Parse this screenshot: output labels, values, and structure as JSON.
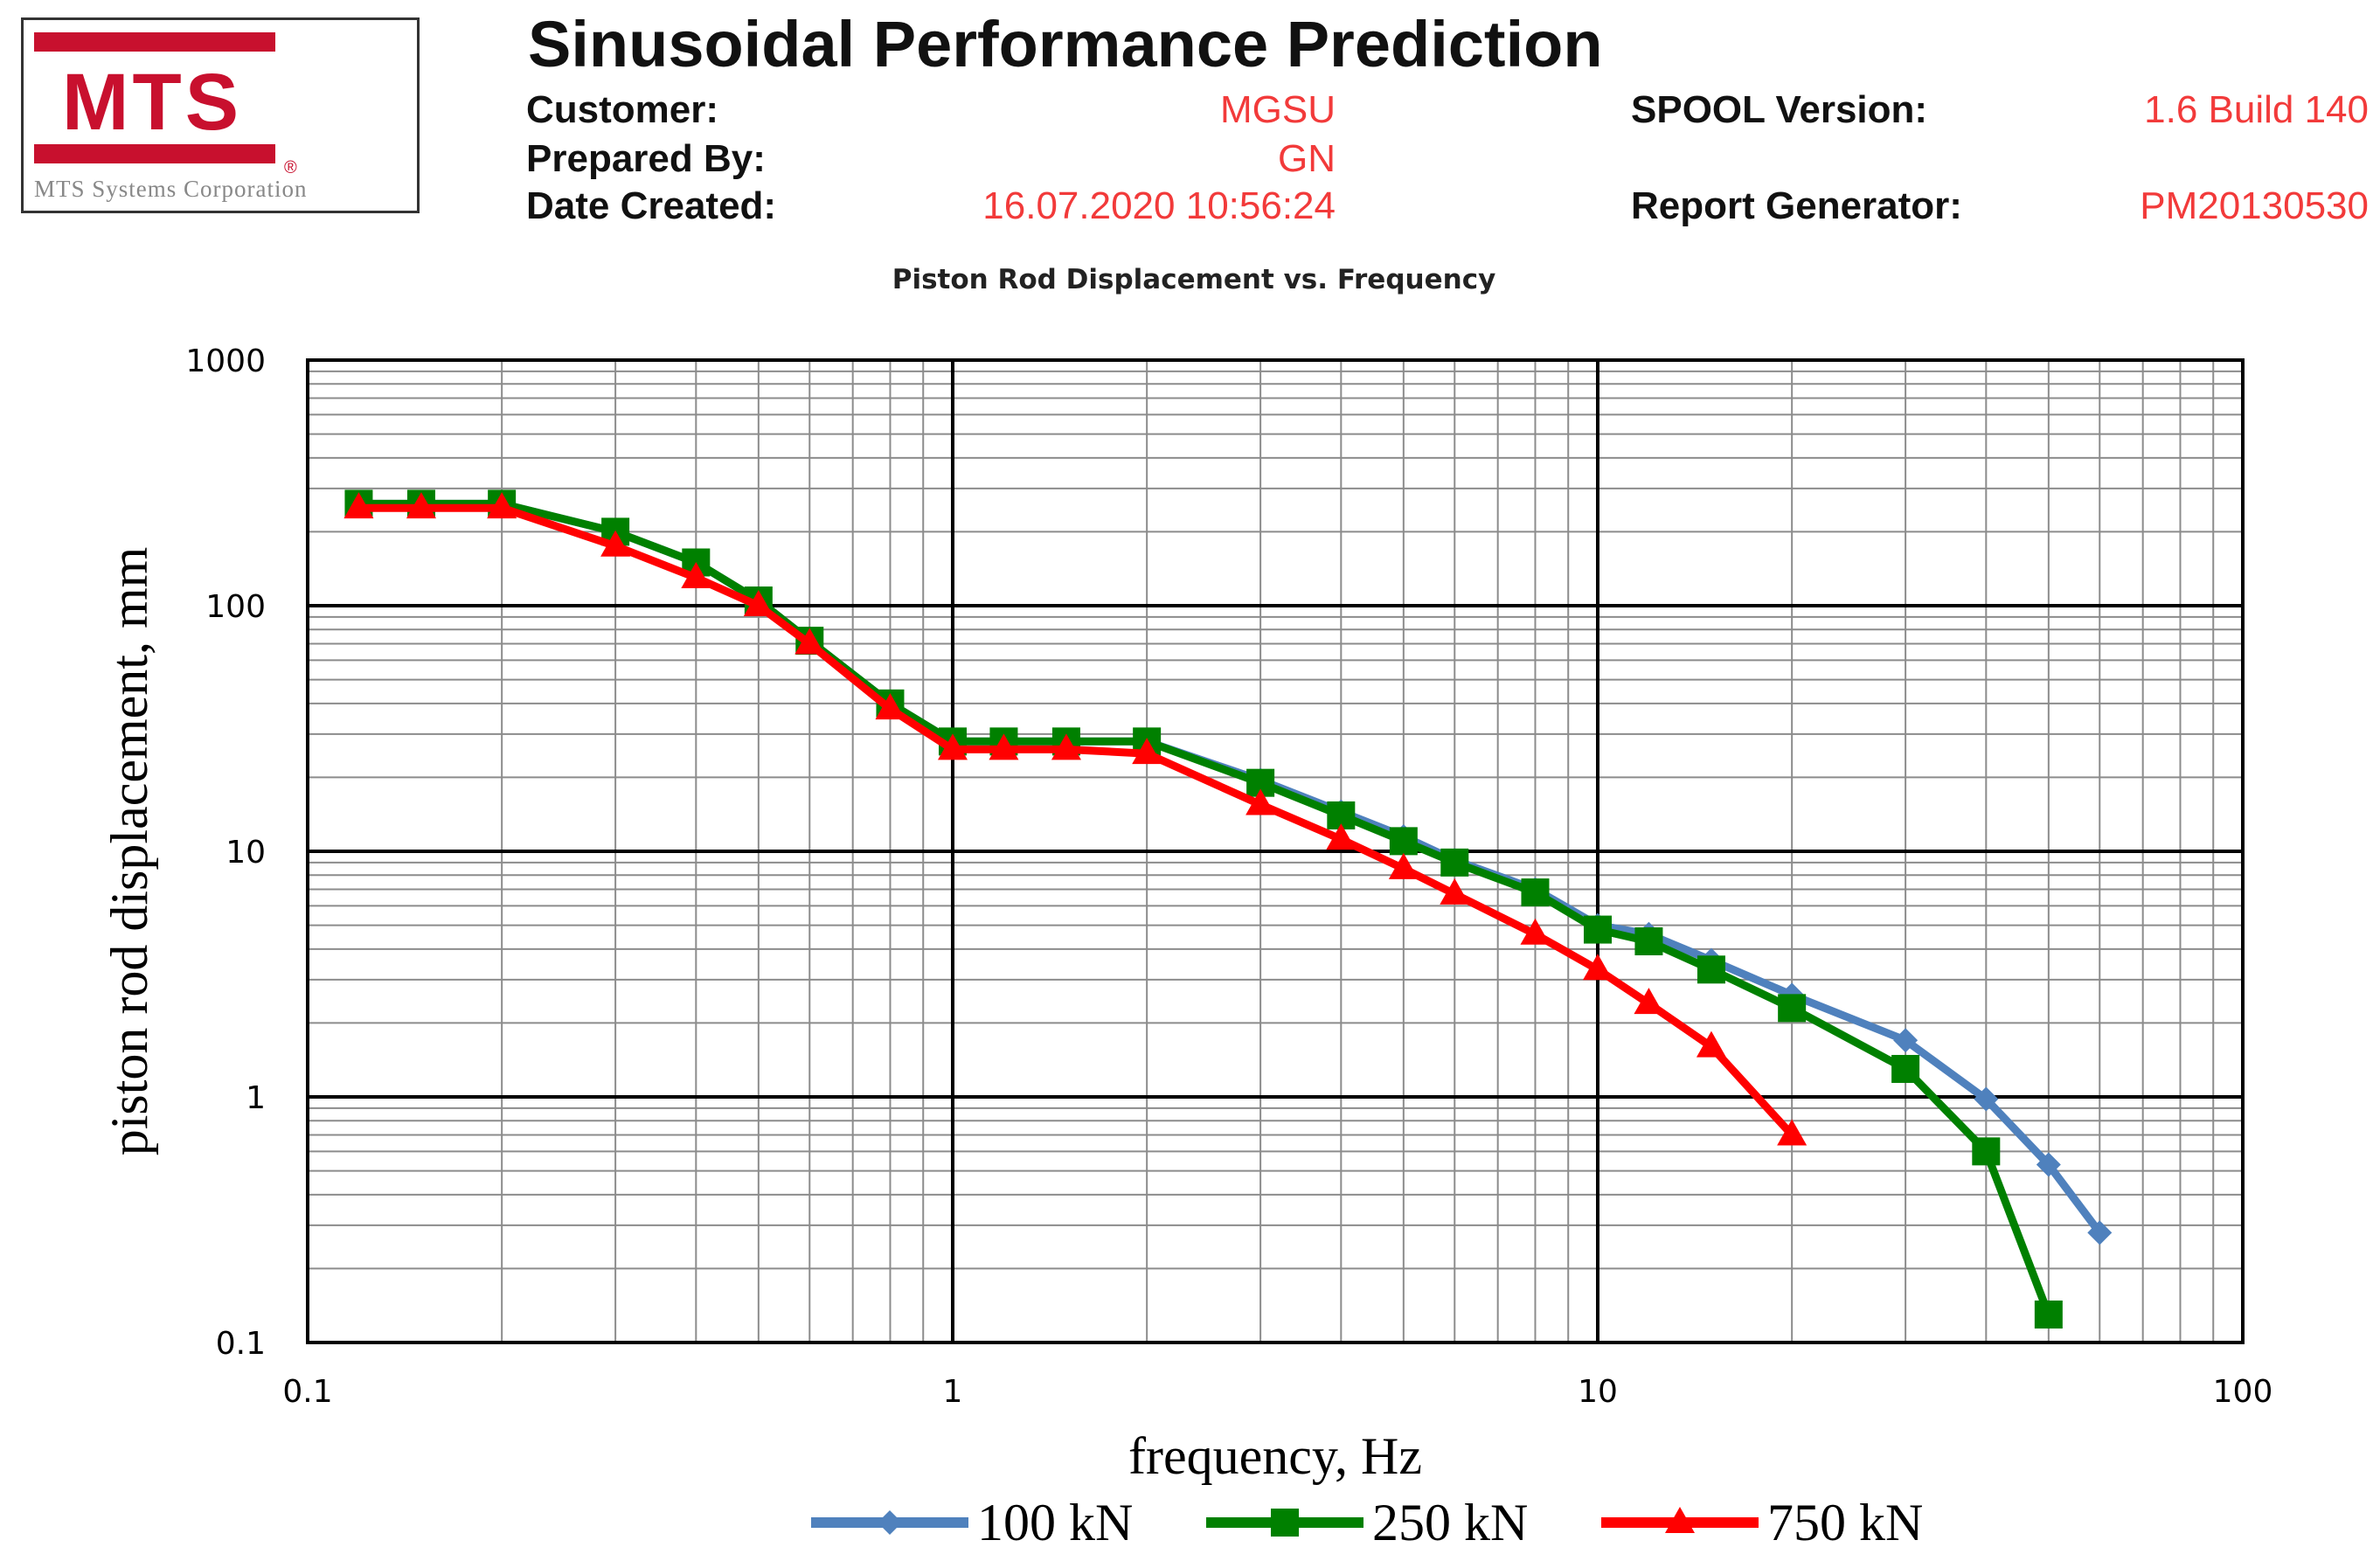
{
  "logo": {
    "text": "MTS",
    "registered": "®",
    "subtitle": "MTS Systems Corporation",
    "brand_color": "#c8102e"
  },
  "header": {
    "title": "Sinusoidal Performance Prediction",
    "customer_label": "Customer:",
    "customer_value": "MGSU",
    "prepared_label": "Prepared By:",
    "prepared_value": "GN",
    "date_label": "Date Created:",
    "date_value": "16.07.2020 10:56:24",
    "spool_label": "SPOOL Version:",
    "spool_value": "1.6 Build 140",
    "generator_label": "Report Generator:",
    "generator_value": "PM20130530",
    "value_color": "#f23a3a"
  },
  "chart_data": {
    "type": "line",
    "title": "Piston Rod Displacement vs. Frequency",
    "xlabel": "frequency, Hz",
    "ylabel": "piston rod displacement, mm",
    "xscale": "log",
    "yscale": "log",
    "xlim": [
      0.1,
      100
    ],
    "ylim": [
      0.1,
      1000
    ],
    "x_ticks": [
      0.1,
      1,
      10,
      100
    ],
    "x_tick_labels": [
      "0.1",
      "1",
      "10",
      "100"
    ],
    "y_ticks": [
      0.1,
      1,
      10,
      100,
      1000
    ],
    "y_tick_labels": [
      "0.1",
      "1",
      "10",
      "100",
      "1000"
    ],
    "grid": true,
    "legend_position": "bottom",
    "series": [
      {
        "name": "100 kN",
        "color": "#4f81bd",
        "marker": "diamond",
        "x": [
          0.12,
          0.15,
          0.2,
          0.3,
          0.4,
          0.5,
          0.6,
          0.8,
          1.0,
          1.2,
          1.5,
          2.0,
          3.0,
          4.0,
          5.0,
          6.0,
          8.0,
          10.0,
          12.0,
          15.0,
          20.0,
          30.0,
          40.0,
          50.0,
          60.0
        ],
        "y": [
          260,
          260,
          260,
          200,
          150,
          105,
          72,
          40,
          28,
          28,
          28,
          28,
          19.5,
          14.5,
          11.5,
          9.2,
          7.0,
          5.0,
          4.6,
          3.6,
          2.6,
          1.7,
          0.98,
          0.53,
          0.28
        ]
      },
      {
        "name": "250 kN",
        "color": "#008000",
        "marker": "square",
        "x": [
          0.12,
          0.15,
          0.2,
          0.3,
          0.4,
          0.5,
          0.6,
          0.8,
          1.0,
          1.2,
          1.5,
          2.0,
          3.0,
          4.0,
          5.0,
          6.0,
          8.0,
          10.0,
          12.0,
          15.0,
          20.0,
          30.0,
          40.0,
          50.0
        ],
        "y": [
          260,
          260,
          260,
          200,
          150,
          105,
          72,
          40,
          28,
          28,
          28,
          28,
          19,
          14,
          11,
          9,
          6.8,
          4.8,
          4.3,
          3.3,
          2.3,
          1.3,
          0.6,
          0.13
        ]
      },
      {
        "name": "750 kN",
        "color": "#ff0000",
        "marker": "triangle",
        "x": [
          0.12,
          0.15,
          0.2,
          0.3,
          0.4,
          0.5,
          0.6,
          0.8,
          1.0,
          1.2,
          1.5,
          2.0,
          3.0,
          4.0,
          5.0,
          6.0,
          8.0,
          10.0,
          12.0,
          15.0,
          20.0
        ],
        "y": [
          250,
          250,
          250,
          175,
          130,
          100,
          70,
          38,
          26,
          26,
          26,
          25,
          15.5,
          11.2,
          8.5,
          6.7,
          4.6,
          3.3,
          2.4,
          1.6,
          0.7
        ]
      }
    ]
  }
}
